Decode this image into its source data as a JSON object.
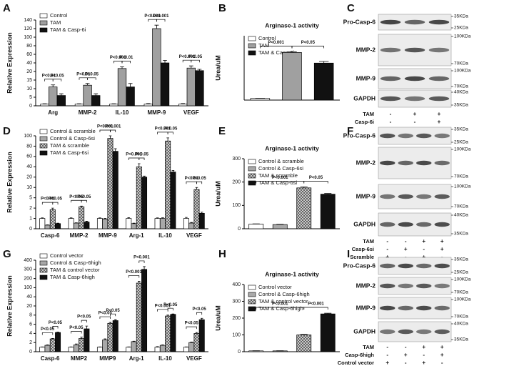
{
  "chart_data": [
    {
      "type": "bar",
      "label": "A",
      "y_label": "Relative Expression",
      "broken_axis": true,
      "categories": [
        "Arg",
        "MMP-2",
        "IL-10",
        "MMP-9",
        "VEGF"
      ],
      "series": [
        {
          "name": "Control",
          "color": "#ffffff",
          "values": [
            1,
            1,
            1,
            1,
            1
          ],
          "errors": [
            0.2,
            0.2,
            0.2,
            0.3,
            0.3
          ]
        },
        {
          "name": "TAM",
          "color": "#a0a0a0",
          "values": [
            11,
            12,
            27,
            120,
            28
          ],
          "errors": [
            1.2,
            1,
            4,
            8,
            5
          ]
        },
        {
          "name": "TAM & Casp-6i",
          "color": "#111111",
          "values": [
            6,
            6,
            11,
            40,
            22
          ],
          "errors": [
            1,
            1,
            2,
            6,
            3
          ]
        }
      ],
      "ylim": [
        0,
        140
      ],
      "yticks": [
        0,
        5,
        10,
        15,
        20,
        40,
        60,
        80,
        100,
        120,
        140
      ],
      "significance": [
        [
          "P<0.01",
          "P<0.05"
        ],
        [
          "P<0.01",
          "P<0.05"
        ],
        [
          "P<0.001",
          "P<0.01"
        ],
        [
          "P<0.001",
          "P<0.001"
        ],
        [
          "P<0.001",
          "P<0.05"
        ]
      ]
    },
    {
      "type": "bar",
      "label": "B",
      "title": "Arginase-1 activity",
      "y_label": "Urea/uM",
      "series": [
        {
          "name": "Control",
          "color": "#ffffff",
          "values": [
            5
          ],
          "errors": [
            0.5
          ]
        },
        {
          "name": "TAM",
          "color": "#a0a0a0",
          "values": [
            148
          ],
          "errors": [
            2
          ]
        },
        {
          "name": "TAM & Casp-6i",
          "color": "#111111",
          "values": [
            115
          ],
          "errors": [
            5
          ]
        }
      ],
      "ylim": [
        0,
        200
      ],
      "significance": [
        "P<0.001",
        "P<0.05"
      ]
    },
    {
      "type": "bar",
      "label": "D",
      "y_label": "Relative Expression",
      "broken_axis": true,
      "categories": [
        "Casp-6",
        "MMP-2",
        "MMP-9",
        "Arg-1",
        "IL-10",
        "VEGF"
      ],
      "series": [
        {
          "name": "Control & scramble",
          "color": "#ffffff",
          "values": [
            1,
            1,
            1,
            1,
            1,
            1
          ],
          "errors": [
            0.05,
            0.05,
            0.05,
            0.08,
            0.05,
            0.1
          ]
        },
        {
          "name": "Control & Casp-6si",
          "color": "#a8a8a8",
          "values": [
            0.35,
            0.55,
            0.95,
            0.5,
            1,
            0.55
          ],
          "errors": [
            0.03,
            0.03,
            0.05,
            0.04,
            0.06,
            0.06
          ]
        },
        {
          "name": "TAM & scramble",
          "color": "#d8d8d8",
          "hatch": true,
          "values": [
            1.85,
            2.4,
            95,
            40,
            90,
            9
          ],
          "errors": [
            0.15,
            0.2,
            5,
            6,
            6,
            1
          ]
        },
        {
          "name": "TAM & Casp-6si",
          "color": "#111111",
          "values": [
            0.5,
            0.65,
            70,
            20,
            30,
            1.5
          ],
          "errors": [
            0.04,
            0.08,
            5,
            2,
            3,
            0.1
          ]
        }
      ],
      "ylim": [
        0,
        100
      ],
      "yticks": [
        0,
        1,
        2,
        5,
        10,
        20,
        40,
        60,
        80,
        100
      ],
      "significance": [
        [
          "P<0.05",
          "P<0.05"
        ],
        [
          "P<0.05",
          "P<0.05"
        ],
        [
          "P<0.001",
          "P<0.001"
        ],
        [
          "P<0.001",
          "P<0.05"
        ],
        [
          "P<0.001",
          "P<0.05"
        ],
        [
          "P<0.01",
          "P<0.05"
        ]
      ]
    },
    {
      "type": "bar",
      "label": "E",
      "title": "Arginase-1 activity",
      "y_label": "Urea/uM",
      "series": [
        {
          "name": "Control & scramble",
          "color": "#ffffff",
          "values": [
            20
          ],
          "errors": [
            1
          ]
        },
        {
          "name": "Control & Casp-6si",
          "color": "#a8a8a8",
          "values": [
            18
          ],
          "errors": [
            1
          ]
        },
        {
          "name": "TAM & scramble",
          "color": "#d8d8d8",
          "hatch": true,
          "values": [
            175
          ],
          "errors": [
            4
          ]
        },
        {
          "name": "TAM & Casp-6si",
          "color": "#111111",
          "values": [
            148
          ],
          "errors": [
            3
          ]
        }
      ],
      "ylim": [
        0,
        300
      ],
      "yticks": [
        0,
        100,
        200,
        300
      ],
      "significance": [
        "P<0.001",
        "P<0.05"
      ]
    },
    {
      "type": "bar",
      "label": "G",
      "y_label": "Relative Expression",
      "broken_axis": true,
      "categories": [
        "Casp-6",
        "MMP2",
        "MMP9",
        "Arg-1",
        "IL-10",
        "VEGF"
      ],
      "series": [
        {
          "name": "Control vector",
          "color": "#ffffff",
          "values": [
            1,
            1,
            1,
            1,
            1,
            1
          ],
          "errors": [
            0.05,
            0.05,
            0.05,
            0.05,
            0.1,
            0.05
          ]
        },
        {
          "name": "Control & Casp-6high",
          "color": "#a8a8a8",
          "values": [
            1.4,
            1.5,
            2.6,
            2.2,
            1.4,
            2
          ],
          "errors": [
            0.1,
            0.2,
            0.2,
            0.1,
            0.1,
            0.1
          ]
        },
        {
          "name": "TAM & control vector",
          "color": "#d8d8d8",
          "hatch": true,
          "values": [
            2.8,
            2.9,
            6.2,
            150,
            7.8,
            4
          ],
          "errors": [
            0.1,
            0.3,
            0.2,
            20,
            0.2,
            0.2
          ]
        },
        {
          "name": "TAM & Casp-6high",
          "color": "#111111",
          "values": [
            4.2,
            5,
            6.8,
            300,
            9,
            7
          ],
          "errors": [
            0.1,
            0.6,
            0.2,
            30,
            0.5,
            0.3
          ]
        }
      ],
      "ylim": [
        0,
        400
      ],
      "yticks": [
        0,
        2,
        4,
        6,
        8,
        20,
        40,
        100,
        200,
        300,
        400
      ],
      "significance": [
        [
          "P<0.05",
          "P<0.05"
        ],
        [
          "P<0.05",
          "P<0.05"
        ],
        [
          "P<0.05",
          "P<0.05"
        ],
        [
          "P<0.001",
          "P<0.001"
        ],
        [
          "P<0.001",
          "P<0.05"
        ],
        [
          "P<0.05",
          "P<0.05"
        ]
      ]
    },
    {
      "type": "bar",
      "label": "H",
      "title": "Arginase-1 activity",
      "y_label": "Urea/uM",
      "series": [
        {
          "name": "Control vector",
          "color": "#ffffff",
          "values": [
            5
          ],
          "errors": [
            0.5
          ]
        },
        {
          "name": "Control & Casp-6high",
          "color": "#a8a8a8",
          "values": [
            5
          ],
          "errors": [
            0.5
          ]
        },
        {
          "name": "TAM & control vector",
          "color": "#d8d8d8",
          "hatch": true,
          "values": [
            100
          ],
          "errors": [
            3
          ]
        },
        {
          "name": "TAM & Casp-6high",
          "color": "#111111",
          "values": [
            225
          ],
          "errors": [
            4
          ]
        }
      ],
      "ylim": [
        0,
        400
      ],
      "yticks": [
        0,
        100,
        200,
        300,
        400
      ],
      "significance": [
        "P<0.001",
        "P<0.001"
      ]
    }
  ],
  "blots": [
    {
      "label": "C",
      "rows": [
        {
          "protein": "Pro-Casp-6",
          "markers": [
            "35KDa",
            "25KDa"
          ]
        },
        {
          "protein": "MMP-2",
          "markers": [
            "100KDa",
            "70KDa"
          ]
        },
        {
          "protein": "MMP-9",
          "markers": [
            "100KDa",
            "70KDa"
          ]
        },
        {
          "protein": "GAPDH",
          "markers": [
            "40KDa",
            "35KDa"
          ]
        }
      ],
      "conditions": [
        {
          "name": "TAM",
          "signs": [
            "-",
            "+",
            "+"
          ]
        },
        {
          "name": "Casp-6i",
          "signs": [
            "-",
            "-",
            "+"
          ]
        }
      ]
    },
    {
      "label": "F",
      "rows": [
        {
          "protein": "Pro-Casp-6",
          "markers": [
            "35KDa",
            "25KDa"
          ]
        },
        {
          "protein": "MMP-2",
          "markers": [
            "100KDa",
            "70KDa"
          ]
        },
        {
          "protein": "MMP-9",
          "markers": [
            "100KDa",
            "70KDa"
          ]
        },
        {
          "protein": "GAPDH",
          "markers": [
            "40KDa",
            "35KDa"
          ]
        }
      ],
      "conditions": [
        {
          "name": "TAM",
          "signs": [
            "-",
            "-",
            "+",
            "+"
          ]
        },
        {
          "name": "Casp-6si",
          "signs": [
            "-",
            "+",
            "-",
            "+"
          ]
        },
        {
          "name": "Scramble",
          "signs": [
            "+",
            "-",
            "+",
            "-"
          ]
        }
      ]
    },
    {
      "label": "I",
      "rows": [
        {
          "protein": "Pro-Casp-6",
          "markers": [
            "35KDa",
            "25KDa"
          ]
        },
        {
          "protein": "MMP-2",
          "markers": [
            "100KDa",
            "70KDa"
          ]
        },
        {
          "protein": "MMP-9",
          "markers": [
            "100KDa",
            "70KDa"
          ]
        },
        {
          "protein": "GAPDH",
          "markers": [
            "40KDa",
            "35KDa"
          ]
        }
      ],
      "conditions": [
        {
          "name": "TAM",
          "signs": [
            "-",
            "-",
            "+",
            "+"
          ]
        },
        {
          "name": "Casp-6high",
          "signs": [
            "-",
            "+",
            "-",
            "+"
          ]
        },
        {
          "name": "Control vector",
          "signs": [
            "+",
            "-",
            "+",
            "-"
          ]
        }
      ]
    }
  ]
}
